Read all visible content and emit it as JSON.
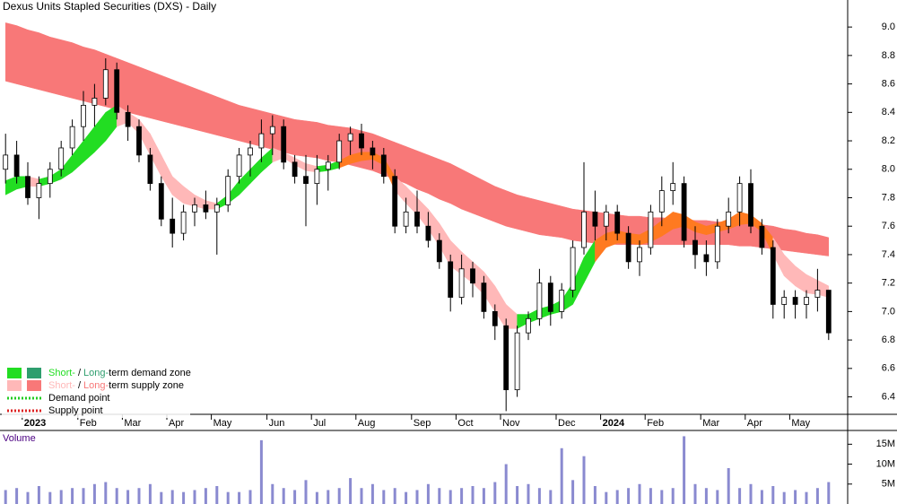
{
  "chart_data": {
    "type": "candlestick",
    "title": "Dexus Units Stapled Securities (DXS) - Daily",
    "categories": [
      null,
      null,
      "2023",
      null,
      null,
      null,
      null,
      "Feb",
      null,
      null,
      null,
      "Mar",
      null,
      null,
      null,
      "Apr",
      null,
      null,
      null,
      "May",
      null,
      null,
      null,
      null,
      "Jun",
      null,
      null,
      null,
      "Jul",
      null,
      null,
      null,
      "Aug",
      null,
      null,
      null,
      null,
      "Sep",
      null,
      null,
      null,
      "Oct",
      null,
      null,
      null,
      "Nov",
      null,
      null,
      null,
      null,
      "Dec",
      null,
      null,
      null,
      "2024",
      null,
      null,
      null,
      "Feb",
      null,
      null,
      null,
      null,
      "Mar",
      null,
      null,
      null,
      "Apr",
      null,
      null,
      null,
      "May",
      null,
      null,
      null
    ],
    "open": [
      8.0,
      8.1,
      7.95,
      7.8,
      7.9,
      8.0,
      8.15,
      8.3,
      8.45,
      8.5,
      8.7,
      8.4,
      8.3,
      8.1,
      7.9,
      7.65,
      7.55,
      7.7,
      7.75,
      7.7,
      7.75,
      7.95,
      8.1,
      8.15,
      8.25,
      8.3,
      8.05,
      7.95,
      7.9,
      8.0,
      8.05,
      8.2,
      8.25,
      8.15,
      8.1,
      7.95,
      7.6,
      7.7,
      7.6,
      7.5,
      7.35,
      7.1,
      7.3,
      7.2,
      7.0,
      6.9,
      6.45,
      6.85,
      6.95,
      7.2,
      7.0,
      7.15,
      7.45,
      7.7,
      7.6,
      7.7,
      7.55,
      7.35,
      7.45,
      7.7,
      7.85,
      7.9,
      7.5,
      7.4,
      7.35,
      7.6,
      7.7,
      7.9,
      7.6,
      7.45,
      7.05,
      7.1,
      7.05,
      7.1,
      7.15
    ],
    "high": [
      8.25,
      8.2,
      8.05,
      7.95,
      8.05,
      8.2,
      8.35,
      8.55,
      8.6,
      8.78,
      8.75,
      8.45,
      8.35,
      8.15,
      7.95,
      7.8,
      7.75,
      7.8,
      7.85,
      7.8,
      8.0,
      8.15,
      8.2,
      8.35,
      8.38,
      8.35,
      8.1,
      8.1,
      8.1,
      8.1,
      8.25,
      8.3,
      8.32,
      8.2,
      8.15,
      8.0,
      7.8,
      7.85,
      7.7,
      7.55,
      7.4,
      7.4,
      7.35,
      7.25,
      7.05,
      6.95,
      6.9,
      7.0,
      7.3,
      7.25,
      7.2,
      7.5,
      8.05,
      7.85,
      7.75,
      7.75,
      7.6,
      7.5,
      7.75,
      7.95,
      8.05,
      7.95,
      7.6,
      7.5,
      7.65,
      7.8,
      7.95,
      8.0,
      7.65,
      7.5,
      7.15,
      7.15,
      7.15,
      7.3,
      7.15
    ],
    "low": [
      7.9,
      7.9,
      7.75,
      7.65,
      7.8,
      7.95,
      8.1,
      8.2,
      8.3,
      8.45,
      8.35,
      8.2,
      8.05,
      7.85,
      7.6,
      7.45,
      7.5,
      7.6,
      7.65,
      7.4,
      7.7,
      7.9,
      7.95,
      8.05,
      8.1,
      8.0,
      7.9,
      7.6,
      7.75,
      7.85,
      8.0,
      8.1,
      8.1,
      8.0,
      7.9,
      7.55,
      7.55,
      7.55,
      7.45,
      7.3,
      7.0,
      7.05,
      7.1,
      6.95,
      6.8,
      6.3,
      6.4,
      6.8,
      6.9,
      6.9,
      6.95,
      7.1,
      7.4,
      7.5,
      7.5,
      7.5,
      7.3,
      7.25,
      7.4,
      7.6,
      7.75,
      7.45,
      7.3,
      7.25,
      7.3,
      7.55,
      7.6,
      7.55,
      7.4,
      6.95,
      6.95,
      6.95,
      6.95,
      7.0,
      6.8
    ],
    "close": [
      8.1,
      7.95,
      7.8,
      7.9,
      8.0,
      8.15,
      8.3,
      8.45,
      8.5,
      8.7,
      8.4,
      8.3,
      8.1,
      7.9,
      7.65,
      7.55,
      7.7,
      7.75,
      7.7,
      7.75,
      7.95,
      8.1,
      8.15,
      8.25,
      8.3,
      8.05,
      7.95,
      7.9,
      8.0,
      8.05,
      8.2,
      8.25,
      8.15,
      8.1,
      7.95,
      7.6,
      7.7,
      7.6,
      7.5,
      7.35,
      7.1,
      7.3,
      7.2,
      7.0,
      6.9,
      6.45,
      6.85,
      6.95,
      7.2,
      7.0,
      7.15,
      7.45,
      7.7,
      7.6,
      7.7,
      7.55,
      7.35,
      7.45,
      7.7,
      7.85,
      7.9,
      7.5,
      7.4,
      7.35,
      7.6,
      7.7,
      7.9,
      7.6,
      7.45,
      7.05,
      7.1,
      7.05,
      7.1,
      7.15,
      6.85
    ],
    "short_upper": [
      7.92,
      7.95,
      7.95,
      7.93,
      7.95,
      8.0,
      8.1,
      8.2,
      8.3,
      8.4,
      8.45,
      8.4,
      8.35,
      8.25,
      8.1,
      7.95,
      7.88,
      7.82,
      7.78,
      7.76,
      7.82,
      7.92,
      8.0,
      8.08,
      8.15,
      8.12,
      8.08,
      8.04,
      8.02,
      8.03,
      8.06,
      8.1,
      8.12,
      8.12,
      8.08,
      7.95,
      7.88,
      7.8,
      7.72,
      7.62,
      7.5,
      7.42,
      7.35,
      7.28,
      7.18,
      7.05,
      6.98,
      6.98,
      7.02,
      7.04,
      7.08,
      7.2,
      7.38,
      7.5,
      7.55,
      7.57,
      7.55,
      7.54,
      7.58,
      7.64,
      7.7,
      7.68,
      7.63,
      7.6,
      7.62,
      7.65,
      7.7,
      7.68,
      7.62,
      7.52,
      7.4,
      7.32,
      7.26,
      7.22,
      7.18
    ],
    "short_lower": [
      7.82,
      7.86,
      7.88,
      7.88,
      7.9,
      7.93,
      7.98,
      8.05,
      8.12,
      8.2,
      8.3,
      8.33,
      8.25,
      8.1,
      7.95,
      7.82,
      7.76,
      7.74,
      7.72,
      7.72,
      7.76,
      7.82,
      7.9,
      7.98,
      8.05,
      8.08,
      8.03,
      7.99,
      7.98,
      7.99,
      8.01,
      8.04,
      8.06,
      8.07,
      8.03,
      7.85,
      7.76,
      7.68,
      7.58,
      7.46,
      7.32,
      7.26,
      7.2,
      7.12,
      7.0,
      6.88,
      6.88,
      6.92,
      6.95,
      6.98,
      7.0,
      7.05,
      7.2,
      7.35,
      7.45,
      7.48,
      7.48,
      7.47,
      7.49,
      7.53,
      7.58,
      7.6,
      7.56,
      7.54,
      7.56,
      7.58,
      7.61,
      7.62,
      7.56,
      7.4,
      7.25,
      7.18,
      7.13,
      7.12,
      7.1
    ],
    "long_upper": [
      9.03,
      9.01,
      8.98,
      8.96,
      8.93,
      8.91,
      8.89,
      8.86,
      8.84,
      8.81,
      8.78,
      8.75,
      8.72,
      8.69,
      8.66,
      8.63,
      8.6,
      8.57,
      8.54,
      8.51,
      8.48,
      8.45,
      8.43,
      8.41,
      8.39,
      8.37,
      8.35,
      8.34,
      8.33,
      8.31,
      8.3,
      8.29,
      8.27,
      8.25,
      8.22,
      8.19,
      8.16,
      8.13,
      8.1,
      8.07,
      8.04,
      8.0,
      7.96,
      7.92,
      7.88,
      7.85,
      7.82,
      7.8,
      7.78,
      7.76,
      7.74,
      7.72,
      7.71,
      7.7,
      7.69,
      7.68,
      7.67,
      7.67,
      7.66,
      7.66,
      7.65,
      7.65,
      7.64,
      7.64,
      7.63,
      7.63,
      7.62,
      7.62,
      7.61,
      7.6,
      7.58,
      7.57,
      7.55,
      7.54,
      7.52
    ],
    "long_lower": [
      8.62,
      8.6,
      8.58,
      8.56,
      8.54,
      8.52,
      8.5,
      8.48,
      8.46,
      8.44,
      8.42,
      8.4,
      8.38,
      8.36,
      8.34,
      8.32,
      8.3,
      8.28,
      8.26,
      8.24,
      8.22,
      8.2,
      8.18,
      8.16,
      8.14,
      8.12,
      8.1,
      8.09,
      8.08,
      8.06,
      8.05,
      8.03,
      8.01,
      7.99,
      7.96,
      7.93,
      7.9,
      7.86,
      7.83,
      7.79,
      7.76,
      7.72,
      7.69,
      7.66,
      7.63,
      7.6,
      7.58,
      7.56,
      7.54,
      7.53,
      7.52,
      7.5,
      7.49,
      7.48,
      7.48,
      7.47,
      7.47,
      7.47,
      7.47,
      7.47,
      7.47,
      7.47,
      7.47,
      7.47,
      7.47,
      7.47,
      7.46,
      7.46,
      7.45,
      7.44,
      7.43,
      7.42,
      7.41,
      7.4,
      7.39
    ],
    "ylim": [
      6.29,
      9.19
    ],
    "yticks": [
      {
        "value": 9.0,
        "label": "9.0"
      },
      8.8,
      8.6,
      8.4,
      8.2,
      {
        "value": 8.0,
        "label": "8.0"
      },
      7.8,
      7.6,
      7.4,
      7.2,
      {
        "value": 7.0,
        "label": "7.0"
      },
      6.8,
      6.6,
      6.4
    ],
    "colors": {
      "short_demand": "#22dd22",
      "long_demand": "#2e9e6e",
      "short_supply": "#ffb8b8",
      "long_supply": "#f87878",
      "overlap": "#ff7a20",
      "volume": "#8a8ad0",
      "demand_point": "#22cc22",
      "supply_point": "#dd2222"
    },
    "legend": [
      {
        "short": "Short-",
        "sep": "/",
        "long": "Long-",
        "text": "term demand zone"
      },
      {
        "short": "Short-",
        "sep": "/",
        "long": "Long-",
        "text": "term supply zone"
      }
    ],
    "points": [
      "Demand point",
      "Supply point"
    ],
    "volume": {
      "label": "Volume",
      "values": [
        3500000,
        4000000,
        3000000,
        4500000,
        3000000,
        3500000,
        4000000,
        4000000,
        5000000,
        5500000,
        4000000,
        3500000,
        4000000,
        5000000,
        3000000,
        3500000,
        3000000,
        3500000,
        4000000,
        4500000,
        3000000,
        3000000,
        3500000,
        16000000,
        5000000,
        4000000,
        3500000,
        6000000,
        3000000,
        3500000,
        4000000,
        6500000,
        4000000,
        5000000,
        3500000,
        4000000,
        3000000,
        3500000,
        5000000,
        4000000,
        3500000,
        4000000,
        4500000,
        4000000,
        5500000,
        10000000,
        4500000,
        5000000,
        4000000,
        3500000,
        14000000,
        6000000,
        12000000,
        4500000,
        3000000,
        3500000,
        4000000,
        5000000,
        4000000,
        3500000,
        4000000,
        17000000,
        5000000,
        4000000,
        3500000,
        9000000,
        4000000,
        5000000,
        3500000,
        4500000,
        3000000,
        3500000,
        3000000,
        4000000,
        5500000
      ],
      "ylim": [
        0,
        18000000
      ],
      "yticks": [
        {
          "value": 15000000,
          "label": "15M"
        },
        {
          "value": 10000000,
          "label": "10M"
        },
        {
          "value": 5000000,
          "label": "5M"
        }
      ]
    }
  }
}
